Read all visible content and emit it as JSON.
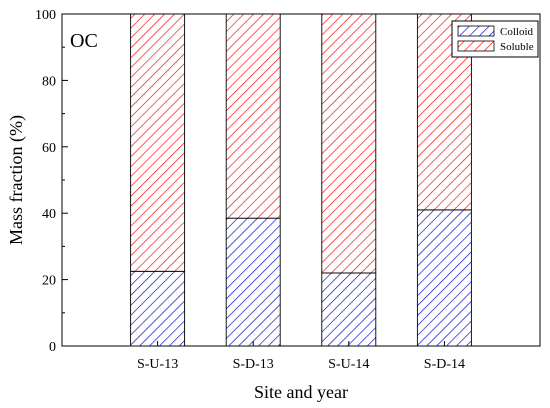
{
  "chart_data": {
    "type": "bar",
    "stacked": true,
    "panel_label": "OC",
    "xlabel": "Site and year",
    "ylabel": "Mass fraction (%)",
    "ylim": [
      0,
      100
    ],
    "yticks": [
      0,
      20,
      40,
      60,
      80,
      100
    ],
    "grid": false,
    "legend_position": "top-right",
    "categories": [
      "S-U-13",
      "S-D-13",
      "S-U-14",
      "S-D-14"
    ],
    "series": [
      {
        "name": "Colloid",
        "color": "#0000cc",
        "pattern": "diagonal-hatch",
        "values": [
          22.5,
          38.5,
          22,
          41
        ]
      },
      {
        "name": "Soluble",
        "color": "#ff0000",
        "pattern": "diagonal-hatch",
        "values": [
          77.5,
          61.5,
          78,
          59
        ]
      }
    ]
  }
}
